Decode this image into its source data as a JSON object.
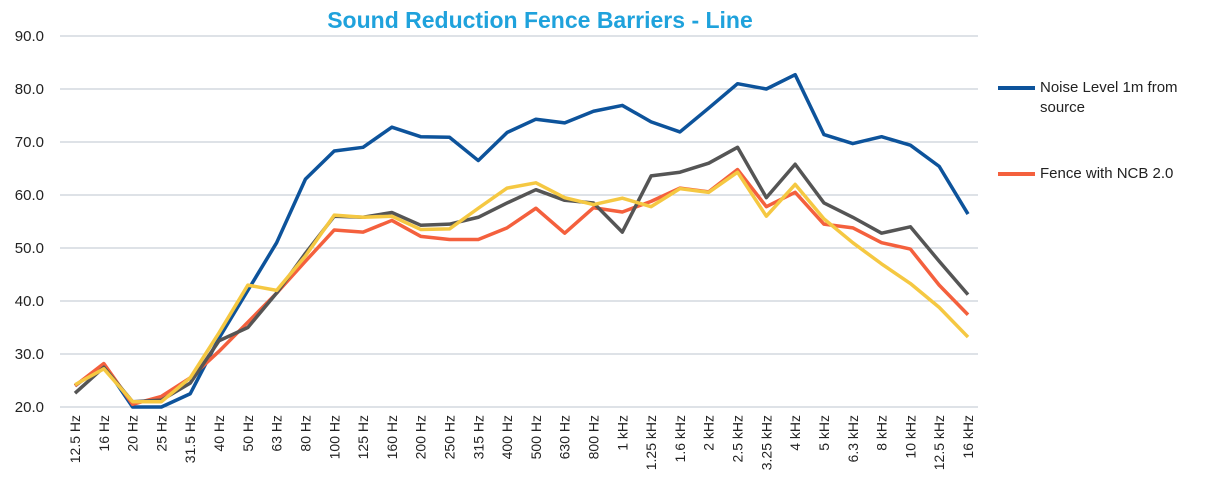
{
  "chart_data": {
    "type": "line",
    "title": "Sound Reduction Fence Barriers - Line",
    "categories": [
      "12.5 Hz",
      "16 Hz",
      "20 Hz",
      "25 Hz",
      "31.5 Hz",
      "40 Hz",
      "50 Hz",
      "63 Hz",
      "80 Hz",
      "100 Hz",
      "125 Hz",
      "160 Hz",
      "200 Hz",
      "250 Hz",
      "315 Hz",
      "400 Hz",
      "500 Hz",
      "630 Hz",
      "800 Hz",
      "1 kHz",
      "1.25 kHz",
      "1.6 kHz",
      "2 kHz",
      "2.5 kHz",
      "3.25 kHz",
      "4 kHz",
      "5 kHz",
      "6.3 kHz",
      "8 kHz",
      "10 kHz",
      "12.5 kHz",
      "16 kHz"
    ],
    "series": [
      {
        "name": "Noise Level 1m from source",
        "color": "#0d539b",
        "values": [
          24,
          28,
          20,
          20,
          22.5,
          33,
          42,
          51,
          63,
          68.3,
          69,
          72.8,
          71,
          70.9,
          66.5,
          71.8,
          74.3,
          73.6,
          75.8,
          76.9,
          73.8,
          71.9,
          76.4,
          81,
          80,
          82.7,
          71.4,
          69.7,
          71,
          69.4,
          65.4,
          56.4
        ]
      },
      {
        "name": "Fence with NCB 2.0",
        "color": "#f4603d",
        "values": [
          24,
          28.2,
          20.5,
          22,
          25.5,
          30.5,
          36,
          41.5,
          47.5,
          53.4,
          53,
          55.2,
          52.2,
          51.6,
          51.6,
          53.8,
          57.5,
          52.8,
          57.6,
          56.8,
          58.8,
          61.3,
          60.6,
          64.8,
          57.8,
          60.5,
          54.5,
          53.8,
          51,
          49.8,
          43,
          37.4
        ]
      },
      {
        "color": "#555555",
        "values": [
          22.6,
          27.5,
          21,
          21.3,
          24.5,
          32.5,
          35,
          41.5,
          49,
          56,
          55.8,
          56.7,
          54.3,
          54.5,
          55.8,
          58.5,
          61,
          59,
          58.5,
          53,
          63.6,
          64.3,
          66,
          69,
          59.5,
          65.8,
          58.5,
          55.8,
          52.8,
          54,
          47.5,
          41.2
        ]
      },
      {
        "color": "#f5c842",
        "values": [
          24.2,
          27.2,
          21,
          21,
          25.5,
          34,
          43,
          42,
          48.5,
          56.2,
          55.8,
          56,
          53.5,
          53.6,
          57.5,
          61.3,
          62.3,
          59.5,
          58.2,
          59.4,
          57.8,
          61.2,
          60.5,
          64.3,
          56,
          62,
          55.5,
          51,
          47,
          43.3,
          38.8,
          33.2
        ]
      }
    ],
    "ylim": [
      20,
      90
    ],
    "yticks": [
      {
        "value": 20,
        "label": "20.0"
      },
      {
        "value": 30,
        "label": "30.0"
      },
      {
        "value": 40,
        "label": "40.0"
      },
      {
        "value": 50,
        "label": "50.0"
      },
      {
        "value": 60,
        "label": "60.0"
      },
      {
        "value": 70,
        "label": "70.0"
      },
      {
        "value": 80,
        "label": "80.0"
      },
      {
        "value": 90,
        "label": "90.0"
      }
    ],
    "grid": true,
    "legend": "right"
  }
}
